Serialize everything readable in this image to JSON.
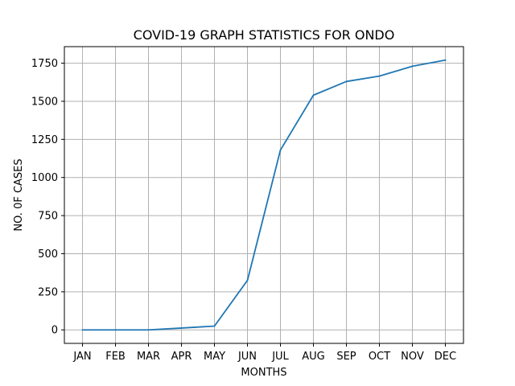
{
  "chart_data": {
    "type": "line",
    "title": "COVID-19 GRAPH STATISTICS FOR ONDO",
    "xlabel": "MONTHS",
    "ylabel": "NO. 0F CASES",
    "categories": [
      "JAN",
      "FEB",
      "MAR",
      "APR",
      "MAY",
      "JUN",
      "JUL",
      "AUG",
      "SEP",
      "OCT",
      "NOV",
      "DEC"
    ],
    "series": [
      {
        "values": [
          0,
          0,
          0,
          12,
          25,
          325,
          1180,
          1540,
          1630,
          1665,
          1730,
          1770
        ],
        "color": "#1f77b4"
      }
    ],
    "yticks": [
      0,
      250,
      500,
      750,
      1000,
      1250,
      1500,
      1750
    ],
    "ylim": [
      -88.5,
      1858.5
    ],
    "grid": true
  }
}
